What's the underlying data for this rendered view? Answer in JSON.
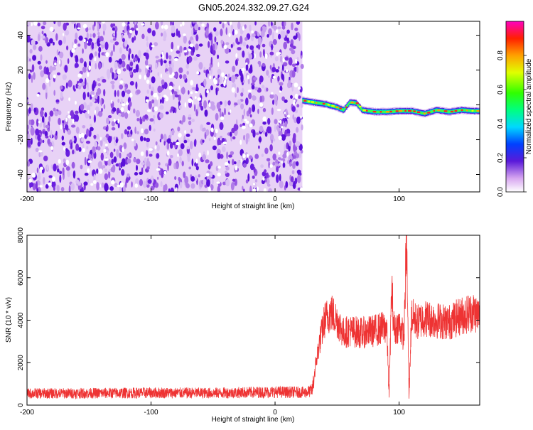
{
  "title": "GN05.2024.332.09.27.G24",
  "colors": {
    "noise_purple": "#6a1ee0",
    "snr_line": "#ee3333",
    "axis": "#000000"
  },
  "chart_data": [
    {
      "type": "heatmap",
      "title": "GN05.2024.332.09.27.G24",
      "xlabel": "Height of straight line (km)",
      "ylabel": "Frequency (Hz)",
      "xlim": [
        -200,
        165
      ],
      "ylim": [
        -50,
        48
      ],
      "xticks": [
        -200,
        -100,
        0,
        100
      ],
      "yticks": [
        -40,
        -20,
        0,
        20,
        40
      ],
      "noise_region_x": [
        -200,
        22
      ],
      "signal_track": {
        "x": [
          22,
          30,
          40,
          50,
          55,
          60,
          65,
          70,
          80,
          90,
          100,
          110,
          120,
          130,
          140,
          150,
          160,
          165
        ],
        "freq": [
          2.5,
          1.5,
          0.5,
          -1.5,
          -3,
          1.5,
          1,
          -3,
          -4,
          -4,
          -3.5,
          -3.5,
          -5,
          -3,
          -4,
          -3,
          -3.5,
          -3.5
        ]
      },
      "colorbar": {
        "label": "Normalized spectral amplitude",
        "range": [
          0,
          1
        ],
        "ticks": [
          0.0,
          0.2,
          0.4,
          0.6,
          0.8
        ]
      }
    },
    {
      "type": "line",
      "xlabel": "Height of straight line (km)",
      "ylabel": "SNR (10 * v/v)",
      "xlim": [
        -200,
        165
      ],
      "ylim": [
        0,
        8000
      ],
      "xticks": [
        -200,
        -100,
        0,
        100
      ],
      "yticks": [
        0,
        2000,
        4000,
        6000,
        8000
      ],
      "series": [
        {
          "x": [
            -200,
            -150,
            -100,
            -50,
            0,
            25,
            30,
            33,
            36,
            40,
            45,
            50,
            55,
            60,
            70,
            80,
            90,
            92,
            94,
            96,
            100,
            104,
            106,
            108,
            110,
            115,
            120,
            130,
            140,
            150,
            160,
            165
          ],
          "values": [
            550,
            560,
            580,
            570,
            620,
            600,
            700,
            2000,
            3000,
            4000,
            4400,
            4000,
            3400,
            3500,
            3400,
            3500,
            3700,
            500,
            5600,
            3500,
            3800,
            3200,
            8000,
            400,
            4200,
            3900,
            4100,
            4000,
            3900,
            4200,
            4400,
            4200
          ]
        }
      ]
    }
  ]
}
